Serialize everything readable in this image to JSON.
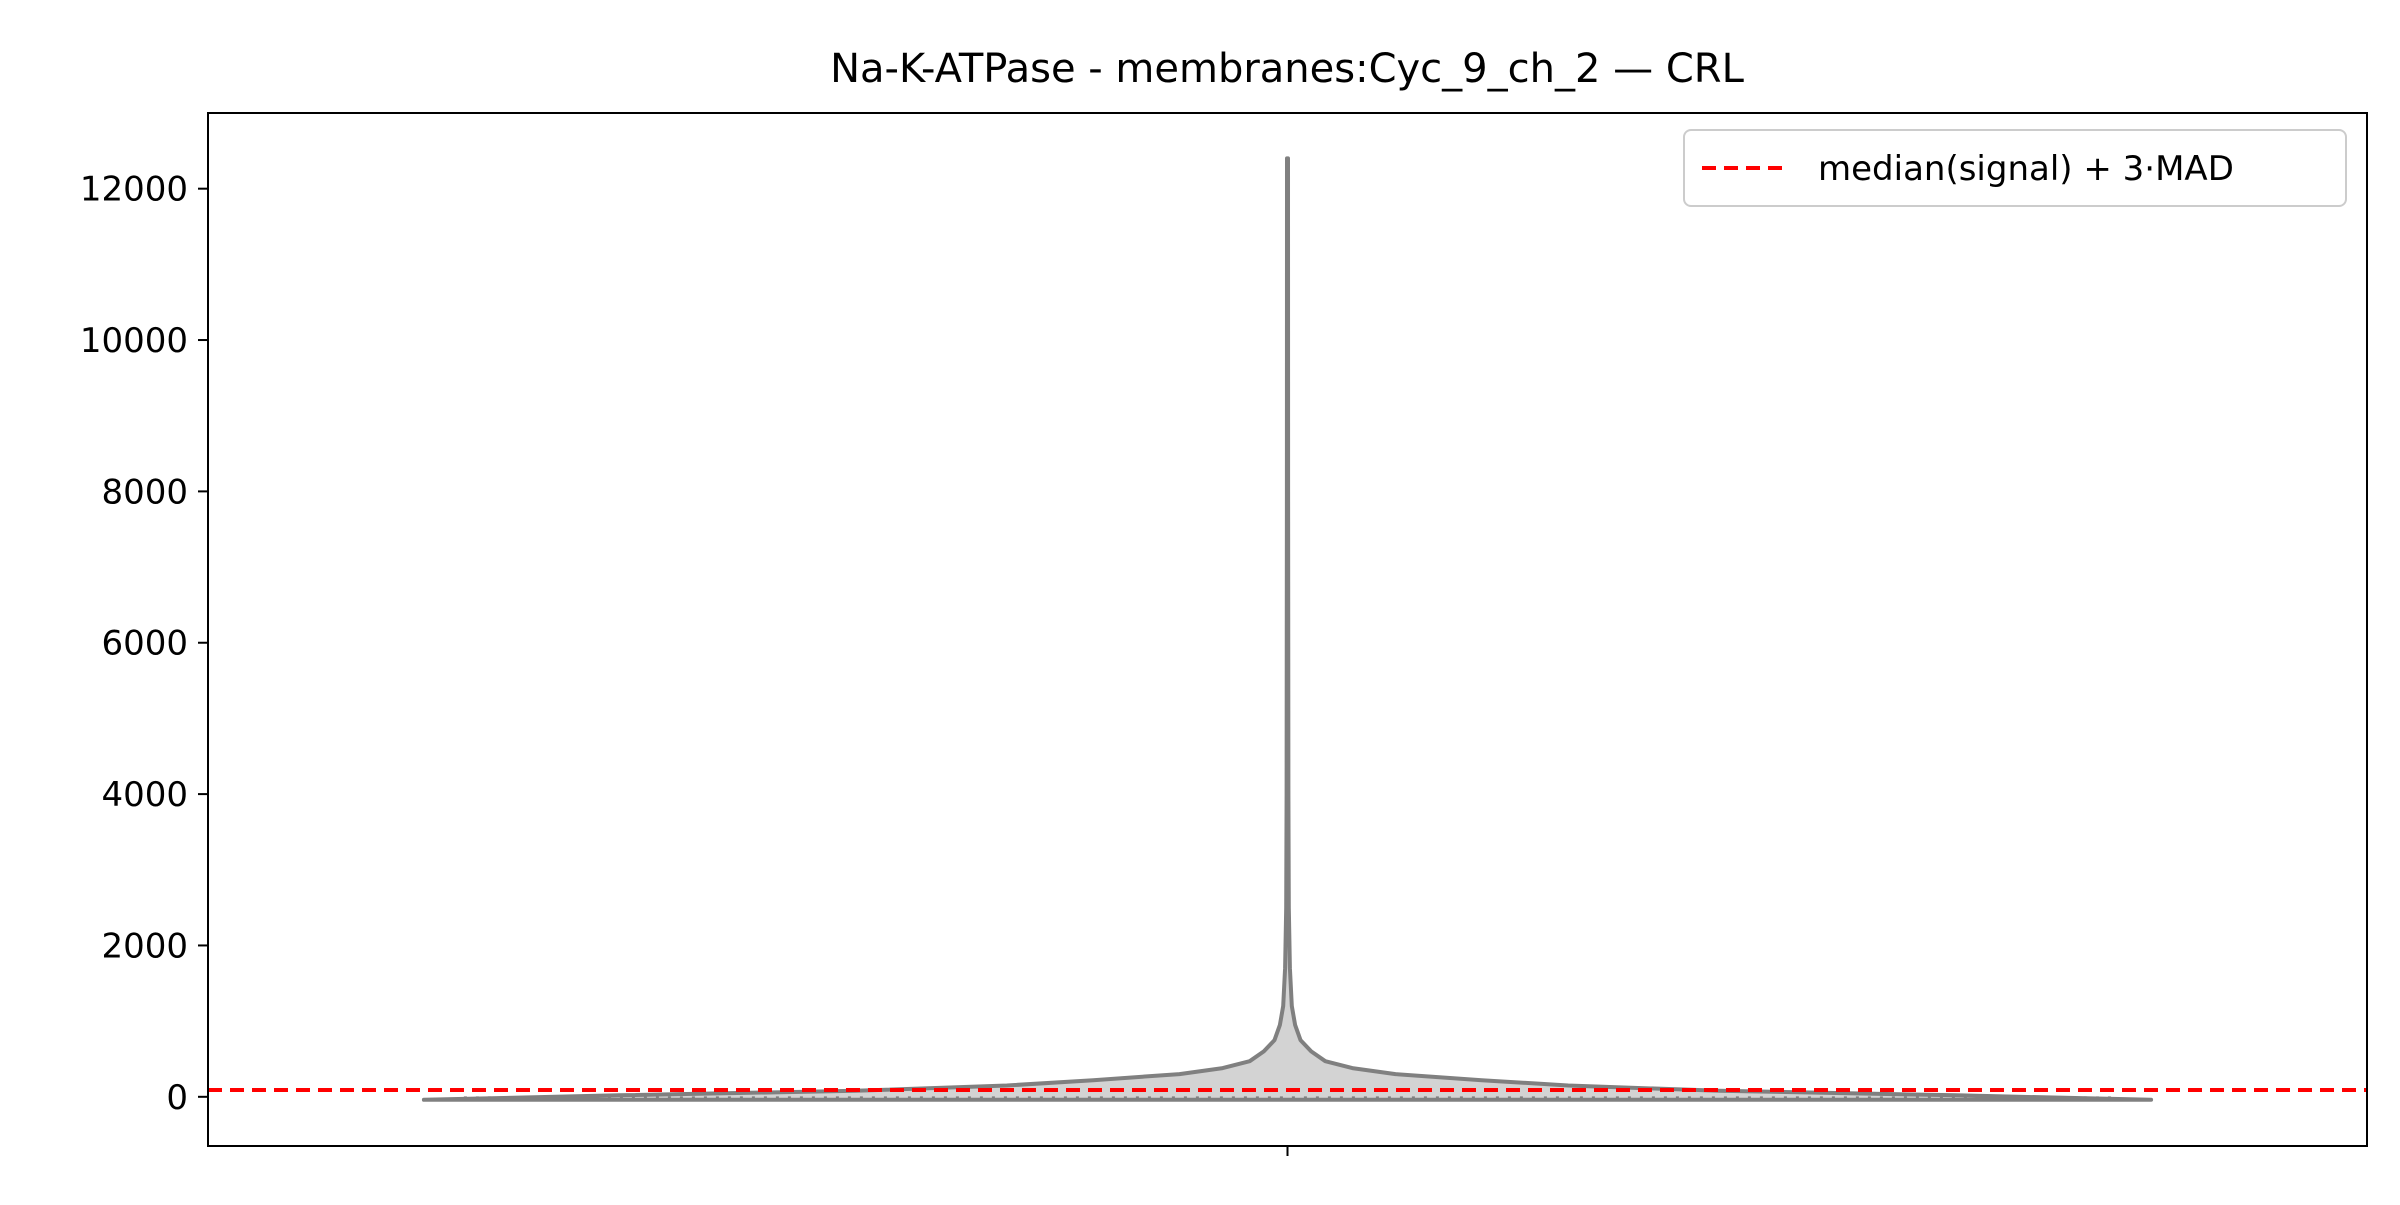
{
  "chart_data": {
    "type": "violin",
    "title": "Na-K-ATPase - membranes:Cyc_9_ch_2 — CRL",
    "xlabel": "",
    "ylabel": "",
    "ylim": [
      -650,
      13000
    ],
    "y_ticks": [
      0,
      2000,
      4000,
      6000,
      8000,
      10000,
      12000
    ],
    "y_tick_labels": [
      "0",
      "2000",
      "4000",
      "6000",
      "8000",
      "10000",
      "12000"
    ],
    "categories": [
      ""
    ],
    "violin": {
      "min": -40,
      "max": 12400,
      "density_profile": [
        {
          "y": -40,
          "width": 0.8
        },
        {
          "y": 20,
          "width": 0.62
        },
        {
          "y": 80,
          "width": 0.4
        },
        {
          "y": 150,
          "width": 0.26
        },
        {
          "y": 220,
          "width": 0.18
        },
        {
          "y": 300,
          "width": 0.1
        },
        {
          "y": 380,
          "width": 0.06
        },
        {
          "y": 470,
          "width": 0.035
        },
        {
          "y": 600,
          "width": 0.022
        },
        {
          "y": 750,
          "width": 0.012
        },
        {
          "y": 950,
          "width": 0.007
        },
        {
          "y": 1200,
          "width": 0.004
        },
        {
          "y": 1700,
          "width": 0.0022
        },
        {
          "y": 2500,
          "width": 0.0012
        },
        {
          "y": 4000,
          "width": 0.0008
        },
        {
          "y": 8000,
          "width": 0.0006
        },
        {
          "y": 12400,
          "width": 0.0005
        }
      ],
      "fill_color": "#d3d3d3",
      "edge_color": "#808080"
    },
    "threshold": {
      "label": "median(signal) + 3·MAD",
      "value": 90,
      "color": "#ff0000",
      "style": "dashed"
    },
    "legend": {
      "position": "top-right",
      "entries": [
        "median(signal) + 3·MAD"
      ]
    },
    "grid": false
  }
}
